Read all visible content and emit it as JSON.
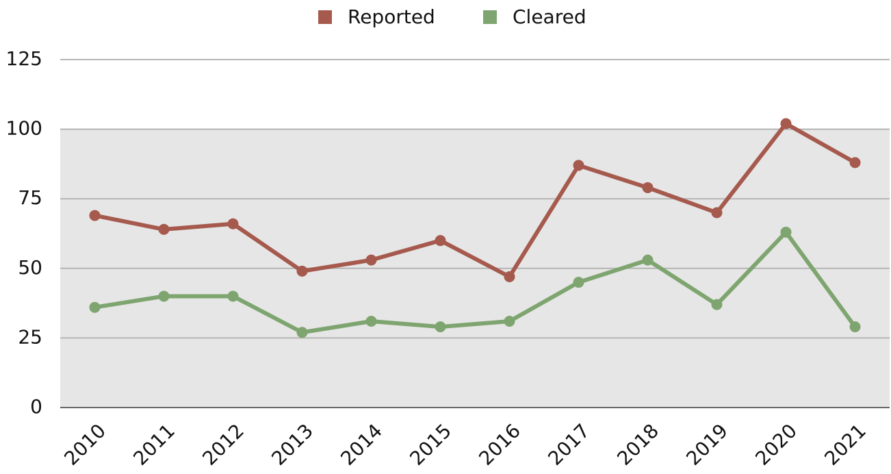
{
  "chart_data": {
    "type": "line",
    "categories": [
      "2010",
      "2011",
      "2012",
      "2013",
      "2014",
      "2015",
      "2016",
      "2017",
      "2018",
      "2019",
      "2020",
      "2021"
    ],
    "series": [
      {
        "name": "Reported",
        "color": "#a65a4e",
        "values": [
          69,
          64,
          66,
          49,
          53,
          60,
          47,
          87,
          79,
          70,
          102,
          88
        ]
      },
      {
        "name": "Cleared",
        "color": "#7ea56f",
        "values": [
          36,
          40,
          40,
          27,
          31,
          29,
          31,
          45,
          53,
          37,
          63,
          29
        ]
      }
    ],
    "ylim": [
      0,
      125
    ],
    "yticks": [
      0,
      25,
      50,
      75,
      100,
      125
    ],
    "grid": true,
    "shaded_band": [
      0,
      100
    ],
    "legend": "top"
  }
}
